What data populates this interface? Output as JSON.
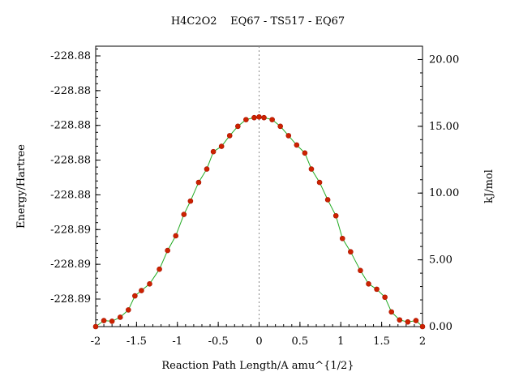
{
  "chart_data": {
    "type": "line",
    "title": "H4C2O2    EQ67 - TS517 - EQ67",
    "xlabel": "Reaction Path Length/A amu^{1/2}",
    "ylabel_left": "Energy/Hartree",
    "ylabel_right": "kJ/mol",
    "xlim": [
      -2,
      2
    ],
    "ylim_right": [
      0,
      21
    ],
    "x_ticks": [
      "-2",
      "-1.5",
      "-1",
      "-0.5",
      "0",
      "0.5",
      "1",
      "1.5",
      "2"
    ],
    "y_left_ticks": [
      "-228.88",
      "-228.88",
      "-228.88",
      "-228.88",
      "-228.88",
      "-228.89",
      "-228.89",
      "-228.89"
    ],
    "y_right_ticks": [
      "0.00",
      "5.00",
      "10.00",
      "15.00",
      "20.00"
    ],
    "ts_marker_x": 0,
    "grid": false,
    "colors": {
      "line": "#22aa22",
      "marker": "#cc2200",
      "ts_line": "#888888"
    },
    "series": [
      {
        "x": [
          -2.0,
          -1.9,
          -1.8,
          -1.7,
          -1.6,
          -1.52,
          -1.44,
          -1.34,
          -1.22,
          -1.12,
          -1.02,
          -0.92,
          -0.84,
          -0.74,
          -0.64,
          -0.56,
          -0.46,
          -0.36,
          -0.26,
          -0.16,
          -0.06,
          0.0,
          0.06,
          0.16,
          0.26,
          0.36,
          0.46,
          0.56,
          0.64,
          0.74,
          0.84,
          0.94,
          1.02,
          1.12,
          1.24,
          1.34,
          1.44,
          1.54,
          1.62,
          1.72,
          1.82,
          1.92,
          2.0
        ],
        "y": [
          0.0,
          0.45,
          0.4,
          0.7,
          1.25,
          2.3,
          2.7,
          3.2,
          4.3,
          5.7,
          6.8,
          8.4,
          9.4,
          10.8,
          11.8,
          13.1,
          13.5,
          14.3,
          15.0,
          15.5,
          15.65,
          15.7,
          15.65,
          15.5,
          15.0,
          14.3,
          13.6,
          13.0,
          11.8,
          10.8,
          9.5,
          8.3,
          6.6,
          5.6,
          4.2,
          3.2,
          2.8,
          2.2,
          1.1,
          0.5,
          0.35,
          0.45,
          0.0
        ]
      }
    ]
  }
}
